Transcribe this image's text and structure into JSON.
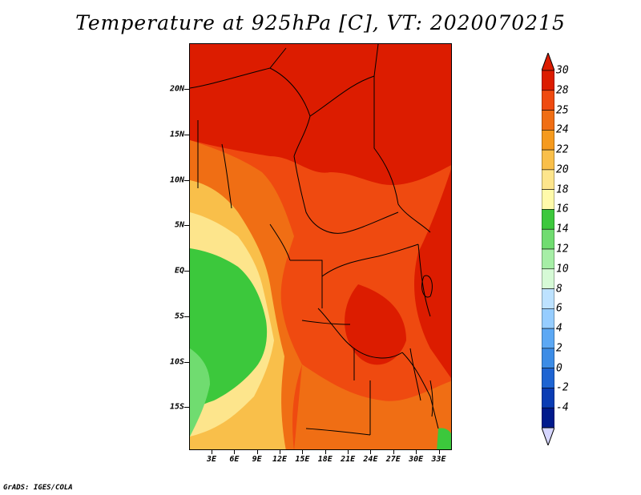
{
  "title": "Temperature at 925hPa [C], VT: 2020070215",
  "credit": "GrADS: IGES/COLA",
  "lat_axis": {
    "unit": "degrees latitude",
    "ticks": [
      {
        "label": "20N",
        "value": 20
      },
      {
        "label": "15N",
        "value": 15
      },
      {
        "label": "10N",
        "value": 10
      },
      {
        "label": "5N",
        "value": 5
      },
      {
        "label": "EQ",
        "value": 0
      },
      {
        "label": "5S",
        "value": -5
      },
      {
        "label": "10S",
        "value": -10
      },
      {
        "label": "15S",
        "value": -15
      }
    ]
  },
  "lon_axis": {
    "ticks": [
      {
        "label": "3E",
        "value": 3
      },
      {
        "label": "6E",
        "value": 6
      },
      {
        "label": "9E",
        "value": 9
      },
      {
        "label": "12E",
        "value": 12
      },
      {
        "label": "15E",
        "value": 15
      },
      {
        "label": "18E",
        "value": 18
      },
      {
        "label": "21E",
        "value": 21
      },
      {
        "label": "24E",
        "value": 24
      },
      {
        "label": "27E",
        "value": 27
      },
      {
        "label": "30E",
        "value": 30
      },
      {
        "label": "33E",
        "value": 33
      }
    ]
  },
  "colorbar": {
    "levels": [
      {
        "label": "30",
        "color": "#dc1c00"
      },
      {
        "label": "28",
        "color": "#ef4a10"
      },
      {
        "label": "25",
        "color": "#f06e14"
      },
      {
        "label": "24",
        "color": "#f59a1e"
      },
      {
        "label": "22",
        "color": "#f9bf4a"
      },
      {
        "label": "20",
        "color": "#fde58c"
      },
      {
        "label": "18",
        "color": "#fffaaa"
      },
      {
        "label": "16",
        "color": "#3cc83c"
      },
      {
        "label": "14",
        "color": "#70dc70"
      },
      {
        "label": "12",
        "color": "#a6eea6"
      },
      {
        "label": "10",
        "color": "#d6fad6"
      },
      {
        "label": "8",
        "color": "#bde2ff"
      },
      {
        "label": "6",
        "color": "#96cdff"
      },
      {
        "label": "4",
        "color": "#5ca8f4"
      },
      {
        "label": "2",
        "color": "#3c8ce6"
      },
      {
        "label": "0",
        "color": "#1e64d2"
      },
      {
        "label": "-2",
        "color": "#0a3cb4"
      },
      {
        "label": "-4",
        "color": "#001a8c"
      }
    ],
    "top_triangle_color": "#dc1c00",
    "bottom_triangle_color": "#d6d6ff"
  }
}
